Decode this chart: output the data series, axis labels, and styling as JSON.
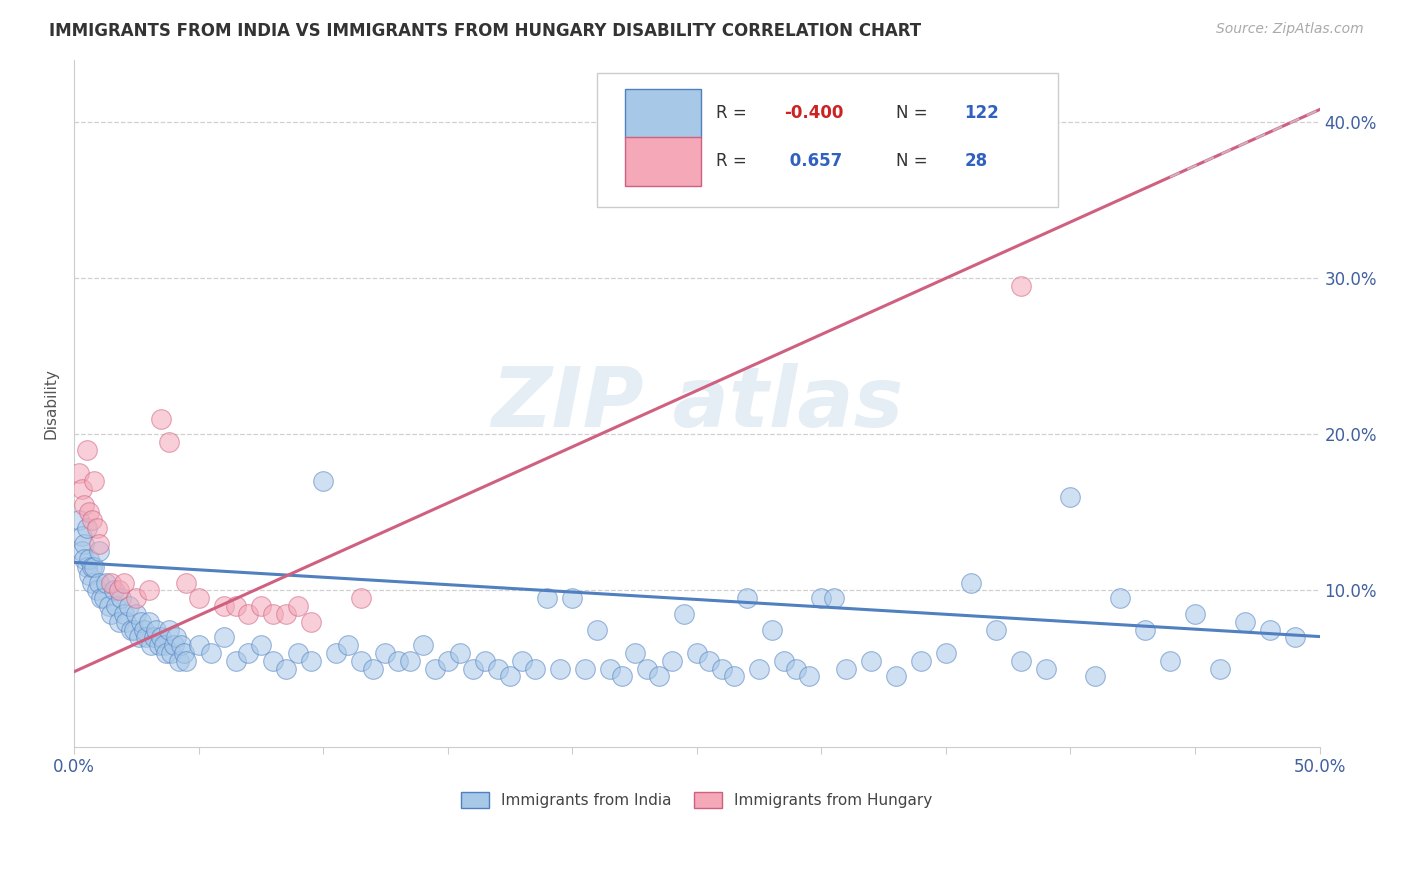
{
  "title": "IMMIGRANTS FROM INDIA VS IMMIGRANTS FROM HUNGARY DISABILITY CORRELATION CHART",
  "source": "Source: ZipAtlas.com",
  "ylabel": "Disability",
  "xlim": [
    0.0,
    0.5
  ],
  "ylim": [
    0.0,
    0.44
  ],
  "xticks": [
    0.0,
    0.05,
    0.1,
    0.15,
    0.2,
    0.25,
    0.3,
    0.35,
    0.4,
    0.45,
    0.5
  ],
  "yticks": [
    0.0,
    0.1,
    0.2,
    0.3,
    0.4
  ],
  "india_color": "#a8c8e8",
  "hungary_color": "#f4a8b8",
  "india_line_color": "#5080c0",
  "hungary_line_color": "#d06080",
  "legend_india_label": "Immigrants from India",
  "legend_hungary_label": "Immigrants from Hungary",
  "india_R": -0.4,
  "india_N": 122,
  "hungary_R": 0.657,
  "hungary_N": 28,
  "india_intercept": 0.118,
  "india_slope": -0.095,
  "hungary_intercept": 0.048,
  "hungary_slope": 0.72,
  "india_points": [
    [
      0.002,
      0.145
    ],
    [
      0.003,
      0.135
    ],
    [
      0.003,
      0.125
    ],
    [
      0.004,
      0.13
    ],
    [
      0.004,
      0.12
    ],
    [
      0.005,
      0.14
    ],
    [
      0.005,
      0.115
    ],
    [
      0.006,
      0.11
    ],
    [
      0.006,
      0.12
    ],
    [
      0.007,
      0.105
    ],
    [
      0.007,
      0.115
    ],
    [
      0.008,
      0.115
    ],
    [
      0.009,
      0.1
    ],
    [
      0.01,
      0.125
    ],
    [
      0.01,
      0.105
    ],
    [
      0.011,
      0.095
    ],
    [
      0.012,
      0.095
    ],
    [
      0.013,
      0.105
    ],
    [
      0.014,
      0.09
    ],
    [
      0.015,
      0.085
    ],
    [
      0.016,
      0.1
    ],
    [
      0.017,
      0.09
    ],
    [
      0.018,
      0.08
    ],
    [
      0.019,
      0.095
    ],
    [
      0.02,
      0.085
    ],
    [
      0.021,
      0.08
    ],
    [
      0.022,
      0.09
    ],
    [
      0.023,
      0.075
    ],
    [
      0.024,
      0.075
    ],
    [
      0.025,
      0.085
    ],
    [
      0.026,
      0.07
    ],
    [
      0.027,
      0.08
    ],
    [
      0.028,
      0.075
    ],
    [
      0.029,
      0.07
    ],
    [
      0.03,
      0.08
    ],
    [
      0.031,
      0.065
    ],
    [
      0.032,
      0.07
    ],
    [
      0.033,
      0.075
    ],
    [
      0.034,
      0.065
    ],
    [
      0.035,
      0.07
    ],
    [
      0.036,
      0.065
    ],
    [
      0.037,
      0.06
    ],
    [
      0.038,
      0.075
    ],
    [
      0.039,
      0.06
    ],
    [
      0.04,
      0.065
    ],
    [
      0.041,
      0.07
    ],
    [
      0.042,
      0.055
    ],
    [
      0.043,
      0.065
    ],
    [
      0.044,
      0.06
    ],
    [
      0.045,
      0.055
    ],
    [
      0.05,
      0.065
    ],
    [
      0.055,
      0.06
    ],
    [
      0.06,
      0.07
    ],
    [
      0.065,
      0.055
    ],
    [
      0.07,
      0.06
    ],
    [
      0.075,
      0.065
    ],
    [
      0.08,
      0.055
    ],
    [
      0.085,
      0.05
    ],
    [
      0.09,
      0.06
    ],
    [
      0.095,
      0.055
    ],
    [
      0.1,
      0.17
    ],
    [
      0.105,
      0.06
    ],
    [
      0.11,
      0.065
    ],
    [
      0.115,
      0.055
    ],
    [
      0.12,
      0.05
    ],
    [
      0.125,
      0.06
    ],
    [
      0.13,
      0.055
    ],
    [
      0.135,
      0.055
    ],
    [
      0.14,
      0.065
    ],
    [
      0.145,
      0.05
    ],
    [
      0.15,
      0.055
    ],
    [
      0.155,
      0.06
    ],
    [
      0.16,
      0.05
    ],
    [
      0.165,
      0.055
    ],
    [
      0.17,
      0.05
    ],
    [
      0.175,
      0.045
    ],
    [
      0.18,
      0.055
    ],
    [
      0.185,
      0.05
    ],
    [
      0.19,
      0.095
    ],
    [
      0.195,
      0.05
    ],
    [
      0.2,
      0.095
    ],
    [
      0.205,
      0.05
    ],
    [
      0.21,
      0.075
    ],
    [
      0.215,
      0.05
    ],
    [
      0.22,
      0.045
    ],
    [
      0.225,
      0.06
    ],
    [
      0.23,
      0.05
    ],
    [
      0.235,
      0.045
    ],
    [
      0.24,
      0.055
    ],
    [
      0.245,
      0.085
    ],
    [
      0.25,
      0.06
    ],
    [
      0.255,
      0.055
    ],
    [
      0.26,
      0.05
    ],
    [
      0.265,
      0.045
    ],
    [
      0.27,
      0.095
    ],
    [
      0.275,
      0.05
    ],
    [
      0.28,
      0.075
    ],
    [
      0.285,
      0.055
    ],
    [
      0.29,
      0.05
    ],
    [
      0.295,
      0.045
    ],
    [
      0.3,
      0.095
    ],
    [
      0.305,
      0.095
    ],
    [
      0.31,
      0.05
    ],
    [
      0.32,
      0.055
    ],
    [
      0.33,
      0.045
    ],
    [
      0.34,
      0.055
    ],
    [
      0.35,
      0.06
    ],
    [
      0.36,
      0.105
    ],
    [
      0.37,
      0.075
    ],
    [
      0.38,
      0.055
    ],
    [
      0.39,
      0.05
    ],
    [
      0.4,
      0.16
    ],
    [
      0.41,
      0.045
    ],
    [
      0.42,
      0.095
    ],
    [
      0.43,
      0.075
    ],
    [
      0.44,
      0.055
    ],
    [
      0.45,
      0.085
    ],
    [
      0.46,
      0.05
    ],
    [
      0.47,
      0.08
    ],
    [
      0.48,
      0.075
    ],
    [
      0.49,
      0.07
    ]
  ],
  "hungary_points": [
    [
      0.002,
      0.175
    ],
    [
      0.003,
      0.165
    ],
    [
      0.004,
      0.155
    ],
    [
      0.005,
      0.19
    ],
    [
      0.006,
      0.15
    ],
    [
      0.007,
      0.145
    ],
    [
      0.008,
      0.17
    ],
    [
      0.009,
      0.14
    ],
    [
      0.01,
      0.13
    ],
    [
      0.015,
      0.105
    ],
    [
      0.018,
      0.1
    ],
    [
      0.02,
      0.105
    ],
    [
      0.025,
      0.095
    ],
    [
      0.03,
      0.1
    ],
    [
      0.035,
      0.21
    ],
    [
      0.038,
      0.195
    ],
    [
      0.045,
      0.105
    ],
    [
      0.05,
      0.095
    ],
    [
      0.06,
      0.09
    ],
    [
      0.065,
      0.09
    ],
    [
      0.07,
      0.085
    ],
    [
      0.075,
      0.09
    ],
    [
      0.08,
      0.085
    ],
    [
      0.085,
      0.085
    ],
    [
      0.09,
      0.09
    ],
    [
      0.095,
      0.08
    ],
    [
      0.115,
      0.095
    ],
    [
      0.38,
      0.295
    ]
  ]
}
